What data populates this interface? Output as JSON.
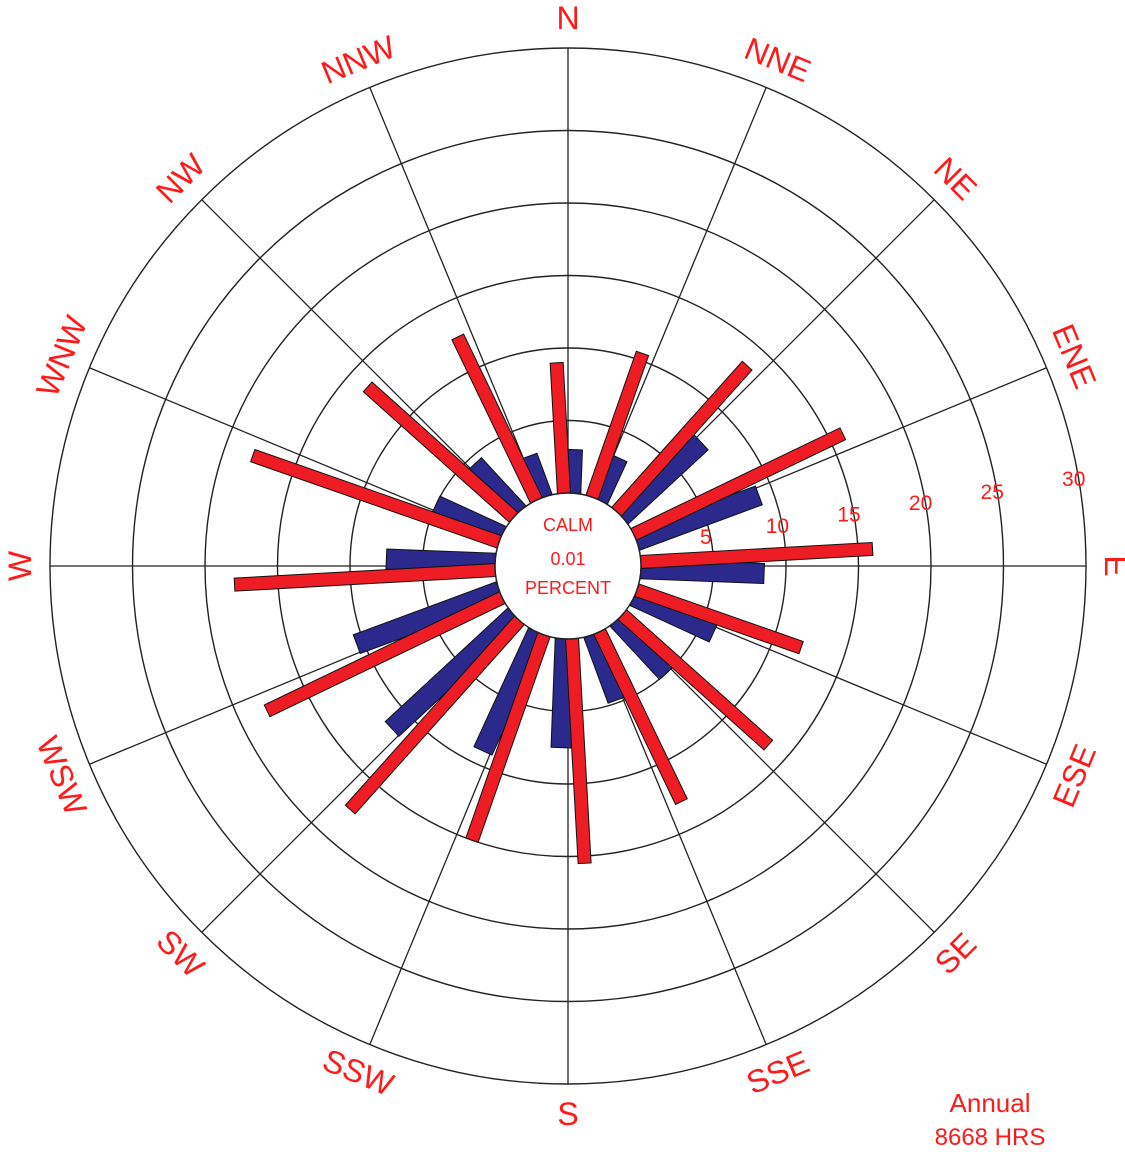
{
  "chart_data": {
    "type": "polar-bar",
    "title": "",
    "directions": [
      "N",
      "NNE",
      "NE",
      "ENE",
      "E",
      "ESE",
      "SE",
      "SSE",
      "S",
      "SSW",
      "SW",
      "WSW",
      "W",
      "WNW",
      "NW",
      "NNW"
    ],
    "direction_labels": [
      "N",
      "NNE",
      "NE",
      "ENE",
      "E",
      "ESE",
      "SE",
      "SSE",
      "S",
      "SSW",
      "SW",
      "WSW",
      "W",
      "WNW",
      "NW",
      "NNW"
    ],
    "radial_ticks": [
      5,
      10,
      15,
      20,
      25,
      30
    ],
    "radial_tick_labels": [
      "5",
      "10",
      "15",
      "20",
      "25",
      "30"
    ],
    "rlim": [
      0,
      30
    ],
    "grid": true,
    "series": [
      {
        "color": "#2b2a8c",
        "values": [
          3.0,
          3.2,
          7.5,
          9.0,
          8.5,
          6.0,
          5.0,
          4.8,
          7.5,
          9.0,
          11.5,
          10.5,
          7.5,
          5.0,
          4.5,
          3.0
        ]
      },
      {
        "color": "#ee1c25",
        "values": [
          9.0,
          10.5,
          13.5,
          16.0,
          16.0,
          12.0,
          13.5,
          13.0,
          15.5,
          15.0,
          17.5,
          18.0,
          18.0,
          18.0,
          13.5,
          12.5
        ]
      }
    ],
    "calm": {
      "line1": "CALM",
      "line2": "0.01",
      "line3": "PERCENT"
    },
    "annotation": {
      "line1": "Annual",
      "line2": "8668 HRS"
    }
  },
  "colors": {
    "label": "#ff1a1a",
    "grid": "#222222",
    "series1": "#2b2a8c",
    "series2": "#ee1c25"
  }
}
